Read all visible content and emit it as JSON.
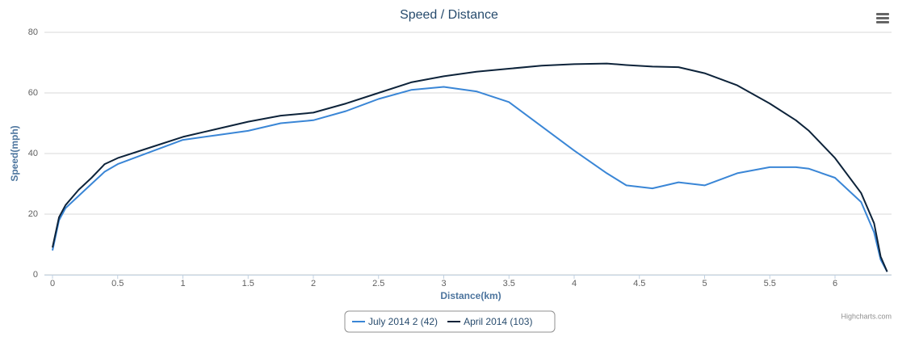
{
  "chart_data": {
    "type": "line",
    "title": "Speed / Distance",
    "x_label": "Distance(km)",
    "y_label": "Speed(mph)",
    "credits": "Highcharts.com",
    "x": [
      0,
      0.05,
      0.1,
      0.2,
      0.3,
      0.4,
      0.5,
      0.75,
      1,
      1.25,
      1.5,
      1.75,
      2,
      2.25,
      2.5,
      2.75,
      3,
      3.25,
      3.5,
      3.75,
      4,
      4.25,
      4.4,
      4.6,
      4.8,
      5,
      5.25,
      5.5,
      5.7,
      5.8,
      6,
      6.2,
      6.3,
      6.35,
      6.4
    ],
    "series": [
      {
        "name": "July 2014 2 (42)",
        "color": "#3a86d6",
        "values": [
          8,
          18,
          22,
          26,
          30,
          34,
          36.5,
          40.5,
          44.5,
          46,
          47.5,
          50,
          51,
          54,
          58,
          61,
          62,
          60.5,
          57,
          49,
          41,
          33.5,
          29.5,
          28.5,
          30.5,
          29.5,
          33.5,
          35.5,
          35.5,
          35,
          32,
          24,
          14,
          5,
          1
        ]
      },
      {
        "name": "April 2014 (103)",
        "color": "#0d233a",
        "values": [
          9,
          19,
          23,
          28,
          32,
          36.5,
          38.5,
          42,
          45.5,
          48,
          50.5,
          52.5,
          53.5,
          56.5,
          60,
          63.5,
          65.5,
          67,
          68,
          69,
          69.5,
          69.7,
          69.2,
          68.7,
          68.5,
          66.5,
          62.5,
          56.5,
          51,
          47.5,
          38.5,
          27,
          17,
          6,
          1
        ]
      }
    ],
    "xlim": [
      0,
      6.45
    ],
    "xticks": [
      0,
      0.5,
      1,
      1.5,
      2,
      2.5,
      3,
      3.5,
      4,
      4.5,
      5,
      5.5,
      6
    ],
    "ylim": [
      0,
      80
    ],
    "yticks": [
      0,
      20,
      40,
      60,
      80
    ],
    "grid": true,
    "legend": "bottom"
  }
}
